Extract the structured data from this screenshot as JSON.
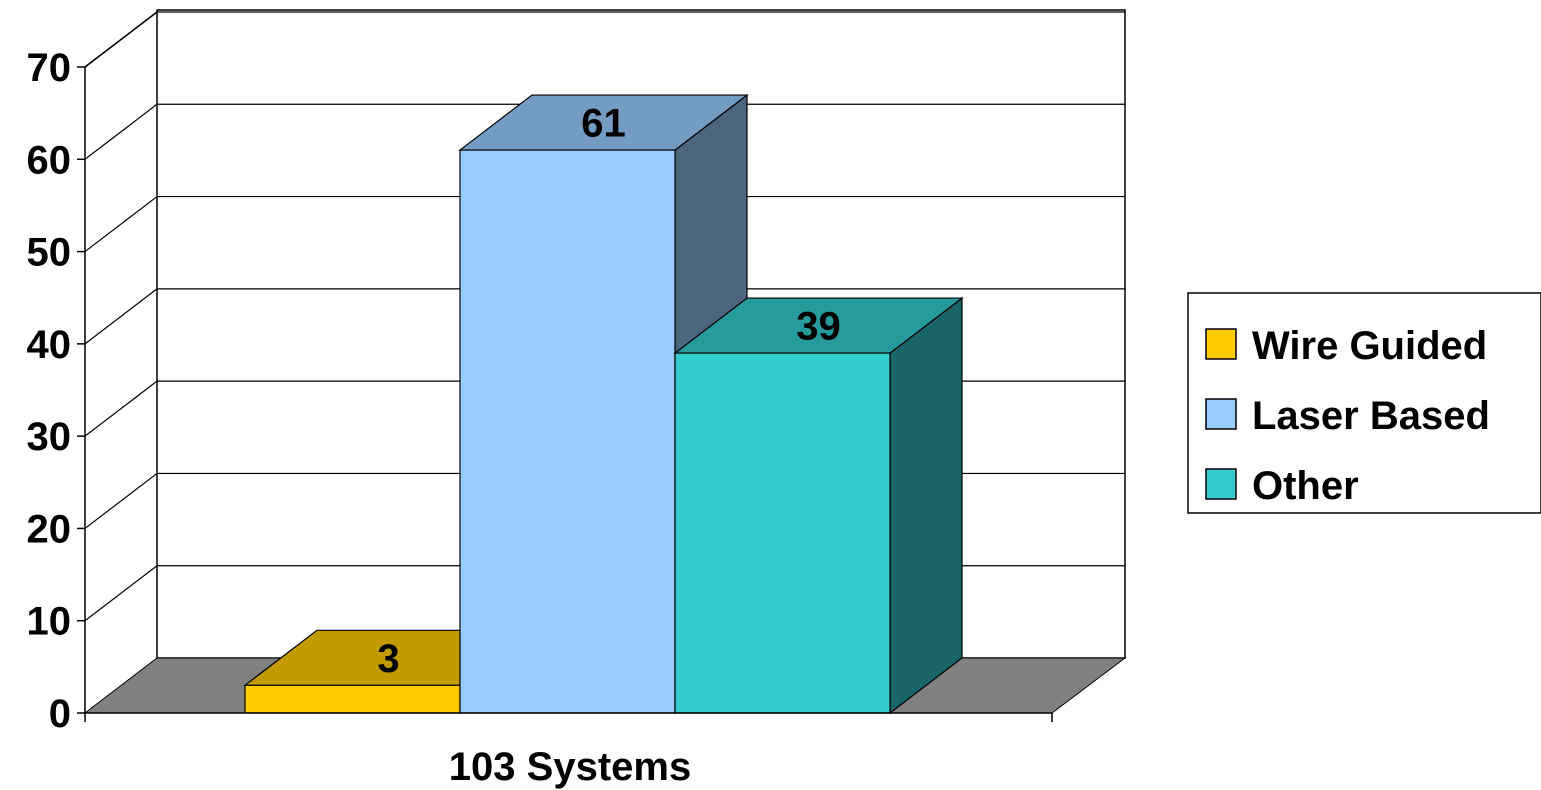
{
  "chart_data": {
    "type": "bar",
    "categories": [
      "103 Systems"
    ],
    "series": [
      {
        "name": "Wire Guided",
        "values": [
          3
        ],
        "color": "#FFCC00"
      },
      {
        "name": "Laser Based",
        "values": [
          61
        ],
        "color": "#99CCFF"
      },
      {
        "name": "Other",
        "values": [
          39
        ],
        "color": "#33CCCC"
      }
    ],
    "data_labels": [
      "3",
      "61",
      "39"
    ],
    "yticks": [
      "0",
      "10",
      "20",
      "30",
      "40",
      "50",
      "60",
      "70"
    ],
    "ylim": [
      0,
      70
    ],
    "grid": true,
    "three_d": true,
    "legend_position": "right",
    "colors": {
      "floor": "#808080",
      "gridline": "#000000"
    }
  }
}
